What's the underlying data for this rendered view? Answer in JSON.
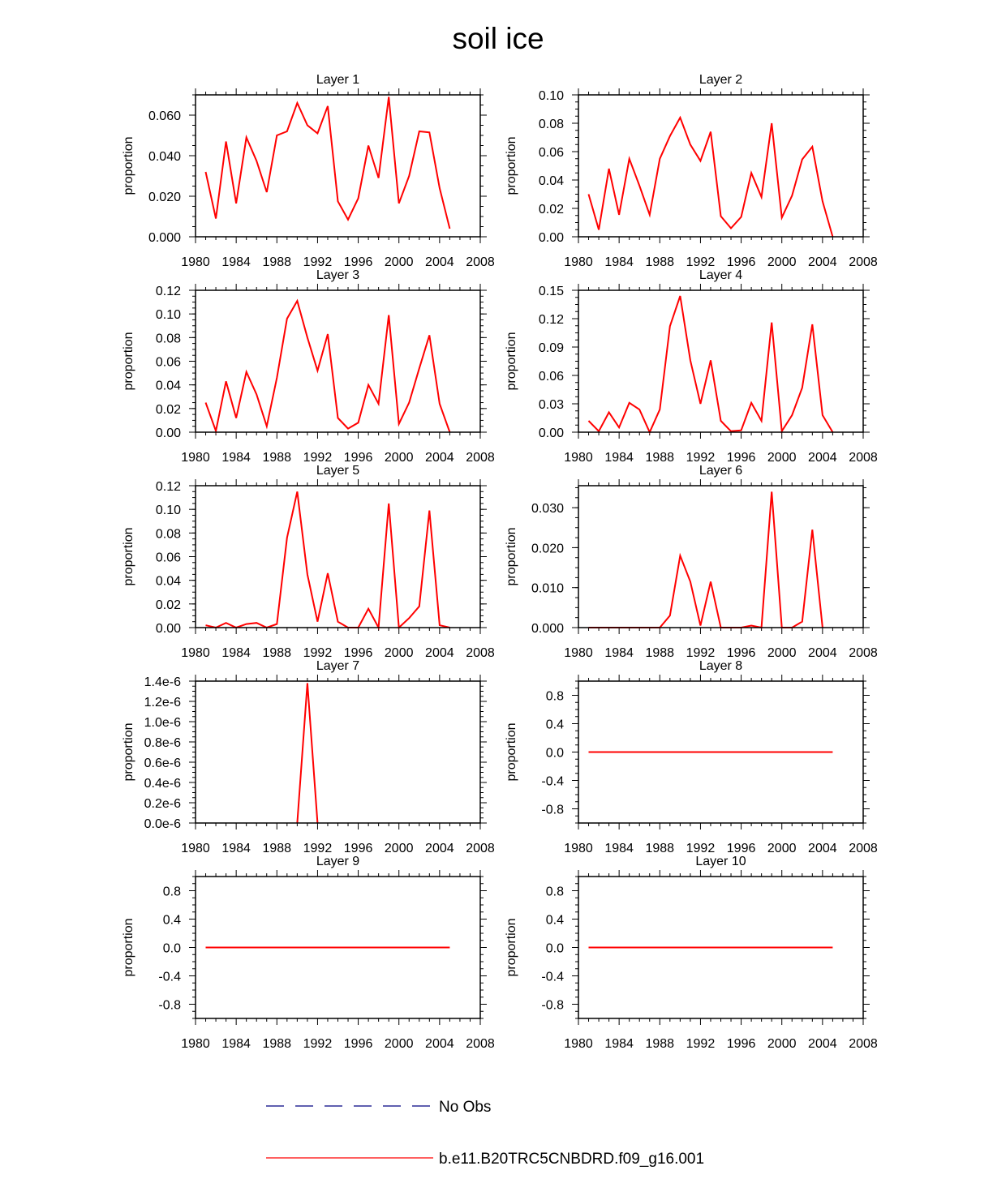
{
  "title": "soil ice",
  "legend": [
    {
      "label": "No Obs",
      "color": "#000080",
      "style": "dashed"
    },
    {
      "label": "b.e11.B20TRC5CNBDRD.f09_g16.001",
      "color": "#ff0000",
      "style": "solid"
    }
  ],
  "chart_data": [
    {
      "type": "line",
      "title": "Layer 1",
      "ylabel": "proportion",
      "xlim": [
        1980,
        2008
      ],
      "ylim": [
        0,
        0.07
      ],
      "xticks": [
        1980,
        1984,
        1988,
        1992,
        1996,
        2000,
        2004,
        2008
      ],
      "xtick_labels": [
        "1980",
        "1984",
        "1988",
        "1992",
        "1996",
        "2000",
        "2004",
        "2008"
      ],
      "yticks": [
        0,
        0.02,
        0.04,
        0.06
      ],
      "ytick_labels": [
        "0.000",
        "0.020",
        "0.040",
        "0.060"
      ],
      "x": [
        1981,
        1982,
        1983,
        1984,
        1985,
        1986,
        1987,
        1988,
        1989,
        1990,
        1991,
        1992,
        1993,
        1994,
        1995,
        1996,
        1997,
        1998,
        1999,
        2000,
        2001,
        2002,
        2003,
        2004,
        2005
      ],
      "series": [
        {
          "color": "#ff0000",
          "values": [
            0.032,
            0.009,
            0.047,
            0.0165,
            0.049,
            0.0375,
            0.022,
            0.05,
            0.052,
            0.066,
            0.055,
            0.051,
            0.0645,
            0.0175,
            0.0085,
            0.019,
            0.045,
            0.029,
            0.069,
            0.0165,
            0.03,
            0.052,
            0.0515,
            0.024,
            0.004
          ]
        }
      ]
    },
    {
      "type": "line",
      "title": "Layer 2",
      "ylabel": "proportion",
      "xlim": [
        1980,
        2008
      ],
      "ylim": [
        0,
        0.1
      ],
      "xticks": [
        1980,
        1984,
        1988,
        1992,
        1996,
        2000,
        2004,
        2008
      ],
      "xtick_labels": [
        "1980",
        "1984",
        "1988",
        "1992",
        "1996",
        "2000",
        "2004",
        "2008"
      ],
      "yticks": [
        0,
        0.02,
        0.04,
        0.06,
        0.08,
        0.1
      ],
      "ytick_labels": [
        "0.00",
        "0.02",
        "0.04",
        "0.06",
        "0.08",
        "0.10"
      ],
      "x": [
        1981,
        1982,
        1983,
        1984,
        1985,
        1986,
        1987,
        1988,
        1989,
        1990,
        1991,
        1992,
        1993,
        1994,
        1995,
        1996,
        1997,
        1998,
        1999,
        2000,
        2001,
        2002,
        2003,
        2004,
        2005
      ],
      "series": [
        {
          "color": "#ff0000",
          "values": [
            0.03,
            0.005,
            0.048,
            0.0155,
            0.055,
            0.036,
            0.0155,
            0.055,
            0.071,
            0.084,
            0.065,
            0.0535,
            0.074,
            0.0145,
            0.006,
            0.014,
            0.045,
            0.028,
            0.08,
            0.0135,
            0.029,
            0.0545,
            0.0635,
            0.025,
            0.0
          ]
        }
      ]
    },
    {
      "type": "line",
      "title": "Layer 3",
      "ylabel": "proportion",
      "xlim": [
        1980,
        2008
      ],
      "ylim": [
        0,
        0.12
      ],
      "xticks": [
        1980,
        1984,
        1988,
        1992,
        1996,
        2000,
        2004,
        2008
      ],
      "xtick_labels": [
        "1980",
        "1984",
        "1988",
        "1992",
        "1996",
        "2000",
        "2004",
        "2008"
      ],
      "yticks": [
        0,
        0.02,
        0.04,
        0.06,
        0.08,
        0.1,
        0.12
      ],
      "ytick_labels": [
        "0.00",
        "0.02",
        "0.04",
        "0.06",
        "0.08",
        "0.10",
        "0.12"
      ],
      "x": [
        1981,
        1982,
        1983,
        1984,
        1985,
        1986,
        1987,
        1988,
        1989,
        1990,
        1991,
        1992,
        1993,
        1994,
        1995,
        1996,
        1997,
        1998,
        1999,
        2000,
        2001,
        2002,
        2003,
        2004,
        2005
      ],
      "series": [
        {
          "color": "#ff0000",
          "values": [
            0.025,
            0.001,
            0.043,
            0.012,
            0.051,
            0.032,
            0.005,
            0.046,
            0.096,
            0.111,
            0.08,
            0.052,
            0.083,
            0.012,
            0.003,
            0.008,
            0.04,
            0.024,
            0.099,
            0.007,
            0.025,
            0.054,
            0.082,
            0.024,
            0.0
          ]
        }
      ]
    },
    {
      "type": "line",
      "title": "Layer 4",
      "ylabel": "proportion",
      "xlim": [
        1980,
        2008
      ],
      "ylim": [
        0,
        0.15
      ],
      "xticks": [
        1980,
        1984,
        1988,
        1992,
        1996,
        2000,
        2004,
        2008
      ],
      "xtick_labels": [
        "1980",
        "1984",
        "1988",
        "1992",
        "1996",
        "2000",
        "2004",
        "2008"
      ],
      "yticks": [
        0,
        0.03,
        0.06,
        0.09,
        0.12,
        0.15
      ],
      "ytick_labels": [
        "0.00",
        "0.03",
        "0.06",
        "0.09",
        "0.12",
        "0.15"
      ],
      "x": [
        1981,
        1982,
        1983,
        1984,
        1985,
        1986,
        1987,
        1988,
        1989,
        1990,
        1991,
        1992,
        1993,
        1994,
        1995,
        1996,
        1997,
        1998,
        1999,
        2000,
        2001,
        2002,
        2003,
        2004,
        2005
      ],
      "series": [
        {
          "color": "#ff0000",
          "values": [
            0.012,
            0.001,
            0.021,
            0.005,
            0.031,
            0.024,
            0.0,
            0.024,
            0.112,
            0.144,
            0.076,
            0.03,
            0.076,
            0.012,
            0.001,
            0.002,
            0.031,
            0.012,
            0.116,
            0.001,
            0.018,
            0.047,
            0.114,
            0.018,
            0.0
          ]
        }
      ]
    },
    {
      "type": "line",
      "title": "Layer 5",
      "ylabel": "proportion",
      "xlim": [
        1980,
        2008
      ],
      "ylim": [
        0,
        0.12
      ],
      "xticks": [
        1980,
        1984,
        1988,
        1992,
        1996,
        2000,
        2004,
        2008
      ],
      "xtick_labels": [
        "1980",
        "1984",
        "1988",
        "1992",
        "1996",
        "2000",
        "2004",
        "2008"
      ],
      "yticks": [
        0,
        0.02,
        0.04,
        0.06,
        0.08,
        0.1,
        0.12
      ],
      "ytick_labels": [
        "0.00",
        "0.02",
        "0.04",
        "0.06",
        "0.08",
        "0.10",
        "0.12"
      ],
      "x": [
        1981,
        1982,
        1983,
        1984,
        1985,
        1986,
        1987,
        1988,
        1989,
        1990,
        1991,
        1992,
        1993,
        1994,
        1995,
        1996,
        1997,
        1998,
        1999,
        2000,
        2001,
        2002,
        2003,
        2004,
        2005
      ],
      "series": [
        {
          "color": "#ff0000",
          "values": [
            0.002,
            0.0,
            0.004,
            0.0,
            0.003,
            0.004,
            0.0,
            0.003,
            0.076,
            0.115,
            0.045,
            0.005,
            0.046,
            0.005,
            0.0,
            0.0,
            0.016,
            0.0,
            0.105,
            0.0,
            0.008,
            0.018,
            0.099,
            0.002,
            0.0
          ]
        }
      ]
    },
    {
      "type": "line",
      "title": "Layer 6",
      "ylabel": "proportion",
      "xlim": [
        1980,
        2008
      ],
      "ylim": [
        0,
        0.0355
      ],
      "xticks": [
        1980,
        1984,
        1988,
        1992,
        1996,
        2000,
        2004,
        2008
      ],
      "xtick_labels": [
        "1980",
        "1984",
        "1988",
        "1992",
        "1996",
        "2000",
        "2004",
        "2008"
      ],
      "yticks": [
        0,
        0.01,
        0.02,
        0.03
      ],
      "ytick_labels": [
        "0.000",
        "0.010",
        "0.020",
        "0.030"
      ],
      "x": [
        1981,
        1982,
        1983,
        1984,
        1985,
        1986,
        1987,
        1988,
        1989,
        1990,
        1991,
        1992,
        1993,
        1994,
        1995,
        1996,
        1997,
        1998,
        1999,
        2000,
        2001,
        2002,
        2003,
        2004
      ],
      "series": [
        {
          "color": "#ff0000",
          "values": [
            0.0,
            0.0,
            0.0,
            0.0,
            0.0,
            0.0,
            0.0,
            0.0,
            0.003,
            0.018,
            0.0115,
            0.0005,
            0.0115,
            0.0,
            0.0,
            0.0,
            0.0005,
            0.0,
            0.034,
            0.0,
            0.0,
            0.0015,
            0.0245,
            0.0
          ]
        }
      ]
    },
    {
      "type": "line",
      "title": "Layer 7",
      "ylabel": "proportion",
      "xlim": [
        1980,
        2008
      ],
      "ylim": [
        0,
        1.4e-06
      ],
      "xticks": [
        1980,
        1984,
        1988,
        1992,
        1996,
        2000,
        2004,
        2008
      ],
      "xtick_labels": [
        "1980",
        "1984",
        "1988",
        "1992",
        "1996",
        "2000",
        "2004",
        "2008"
      ],
      "yticks": [
        0,
        2e-07,
        4e-07,
        6e-07,
        8e-07,
        1e-06,
        1.2e-06,
        1.4e-06
      ],
      "ytick_labels": [
        "0.0e-6",
        "0.2e-6",
        "0.4e-6",
        "0.6e-6",
        "0.8e-6",
        "1.0e-6",
        "1.2e-6",
        "1.4e-6"
      ],
      "x": [
        1990,
        1991,
        1992
      ],
      "series": [
        {
          "color": "#ff0000",
          "values": [
            0.0,
            1.38e-06,
            0.0
          ]
        }
      ]
    },
    {
      "type": "line",
      "title": "Layer 8",
      "ylabel": "proportion",
      "xlim": [
        1980,
        2008
      ],
      "ylim": [
        -1.0,
        1.0
      ],
      "xticks": [
        1980,
        1984,
        1988,
        1992,
        1996,
        2000,
        2004,
        2008
      ],
      "xtick_labels": [
        "1980",
        "1984",
        "1988",
        "1992",
        "1996",
        "2000",
        "2004",
        "2008"
      ],
      "yticks": [
        -0.8,
        -0.4,
        0,
        0.4,
        0.8
      ],
      "ytick_labels": [
        "-0.8",
        "-0.4",
        "0.0",
        "0.4",
        "0.8"
      ],
      "x": [
        1981,
        2005
      ],
      "series": [
        {
          "color": "#ff0000",
          "values": [
            0.0,
            0.0
          ]
        }
      ]
    },
    {
      "type": "line",
      "title": "Layer 9",
      "ylabel": "proportion",
      "xlim": [
        1980,
        2008
      ],
      "ylim": [
        -1.0,
        1.0
      ],
      "xticks": [
        1980,
        1984,
        1988,
        1992,
        1996,
        2000,
        2004,
        2008
      ],
      "xtick_labels": [
        "1980",
        "1984",
        "1988",
        "1992",
        "1996",
        "2000",
        "2004",
        "2008"
      ],
      "yticks": [
        -0.8,
        -0.4,
        0,
        0.4,
        0.8
      ],
      "ytick_labels": [
        "-0.8",
        "-0.4",
        "0.0",
        "0.4",
        "0.8"
      ],
      "x": [
        1981,
        2005
      ],
      "series": [
        {
          "color": "#ff0000",
          "values": [
            0.0,
            0.0
          ]
        }
      ]
    },
    {
      "type": "line",
      "title": "Layer 10",
      "ylabel": "proportion",
      "xlim": [
        1980,
        2008
      ],
      "ylim": [
        -1.0,
        1.0
      ],
      "xticks": [
        1980,
        1984,
        1988,
        1992,
        1996,
        2000,
        2004,
        2008
      ],
      "xtick_labels": [
        "1980",
        "1984",
        "1988",
        "1992",
        "1996",
        "2000",
        "2004",
        "2008"
      ],
      "yticks": [
        -0.8,
        -0.4,
        0,
        0.4,
        0.8
      ],
      "ytick_labels": [
        "-0.8",
        "-0.4",
        "0.0",
        "0.4",
        "0.8"
      ],
      "x": [
        1981,
        2005
      ],
      "series": [
        {
          "color": "#ff0000",
          "values": [
            0.0,
            0.0
          ]
        }
      ]
    }
  ]
}
